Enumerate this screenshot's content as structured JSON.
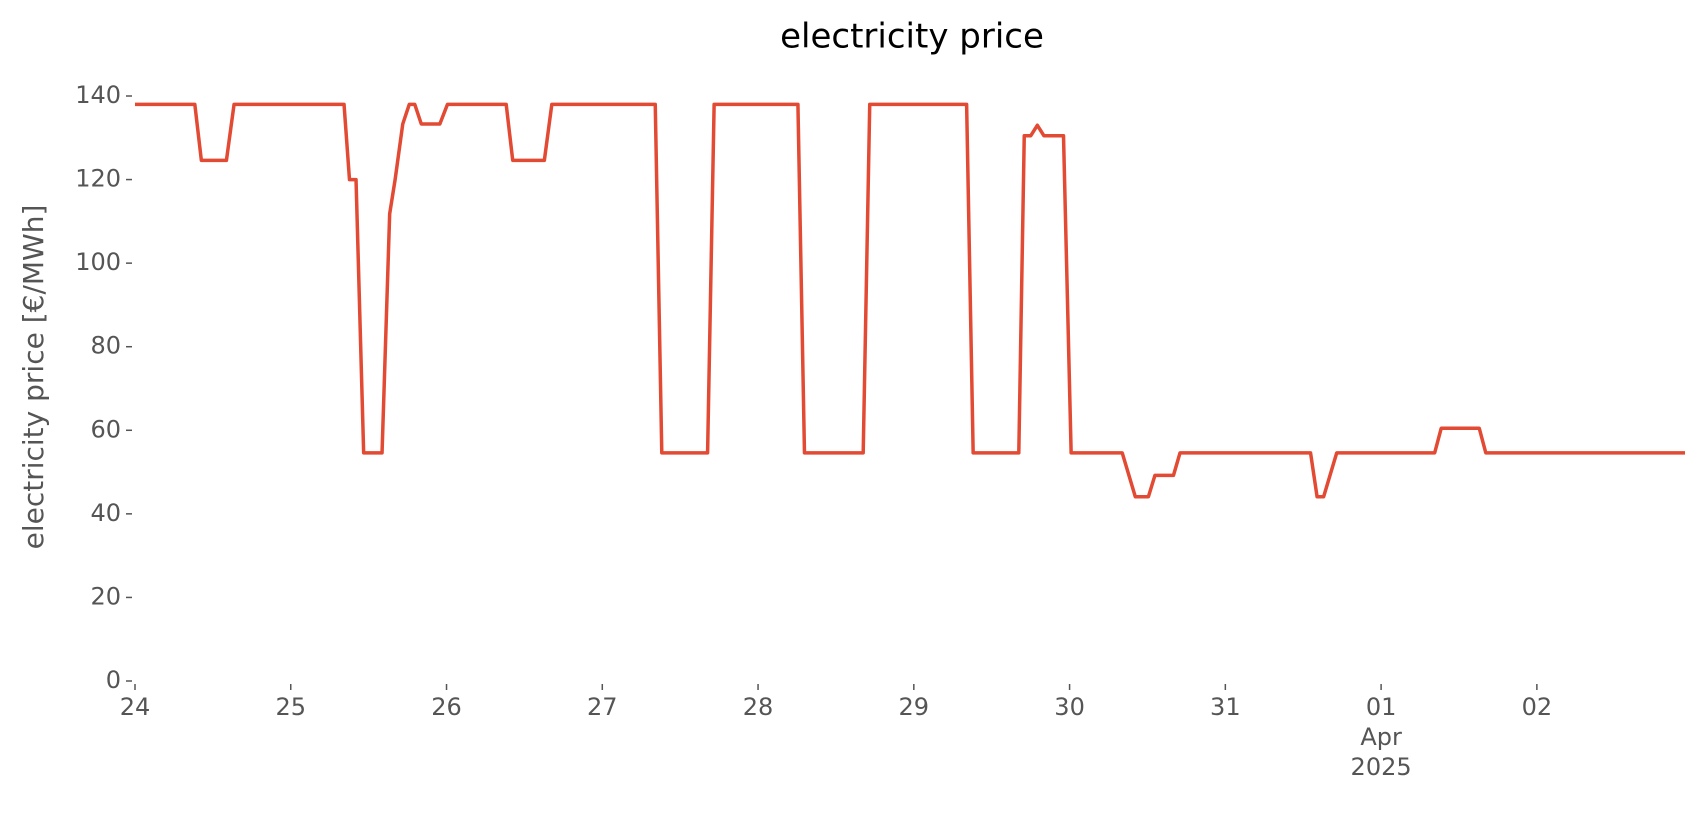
{
  "chart_data": {
    "type": "line",
    "title": "electricity price",
    "y_label": "electricity price [€/MWh]",
    "x": [
      0,
      0.384,
      0.426,
      0.587,
      0.636,
      1.342,
      1.377,
      1.419,
      1.468,
      1.586,
      1.635,
      1.67,
      1.719,
      1.761,
      1.796,
      1.838,
      1.957,
      2.006,
      2.383,
      2.425,
      2.628,
      2.676,
      3.34,
      3.382,
      3.676,
      3.718,
      4.256,
      4.298,
      4.675,
      4.717,
      5.339,
      5.381,
      5.674,
      5.709,
      5.751,
      5.793,
      5.835,
      5.961,
      6.01,
      6.338,
      6.422,
      6.506,
      6.548,
      6.667,
      6.709,
      7.547,
      7.589,
      7.631,
      7.715,
      8.344,
      8.386,
      8.63,
      8.672,
      9.951
    ],
    "series": [
      {
        "name": "electricity price",
        "color": "#e24a33",
        "values": [
          138,
          138,
          124.6,
          124.6,
          138,
          138,
          120,
          120,
          54.6,
          54.6,
          111.8,
          120,
          133.3,
          138,
          138,
          133.3,
          133.3,
          138,
          138,
          124.6,
          124.6,
          138,
          138,
          54.6,
          54.6,
          138,
          138,
          54.6,
          54.6,
          138,
          138,
          54.6,
          54.6,
          130.5,
          130.5,
          133,
          130.5,
          130.5,
          54.6,
          54.6,
          44.1,
          44.1,
          49.2,
          49.2,
          54.6,
          54.6,
          44.1,
          44.1,
          54.6,
          54.6,
          60.5,
          60.5,
          54.6,
          54.6
        ]
      }
    ],
    "xlim": [
      0,
      9.951
    ],
    "xticks": [
      {
        "value": 0,
        "label": "24"
      },
      {
        "value": 1,
        "label": "25"
      },
      {
        "value": 2,
        "label": "26"
      },
      {
        "value": 3,
        "label": "27"
      },
      {
        "value": 4,
        "label": "28"
      },
      {
        "value": 5,
        "label": "29"
      },
      {
        "value": 6,
        "label": "30"
      },
      {
        "value": 7,
        "label": "31"
      },
      {
        "value": 8,
        "label": "01\nApr\n2025"
      },
      {
        "value": 9,
        "label": "02"
      }
    ],
    "ylim": [
      0,
      140
    ],
    "yticks": [
      0,
      20,
      40,
      60,
      80,
      100,
      120,
      140
    ],
    "grid": false
  }
}
